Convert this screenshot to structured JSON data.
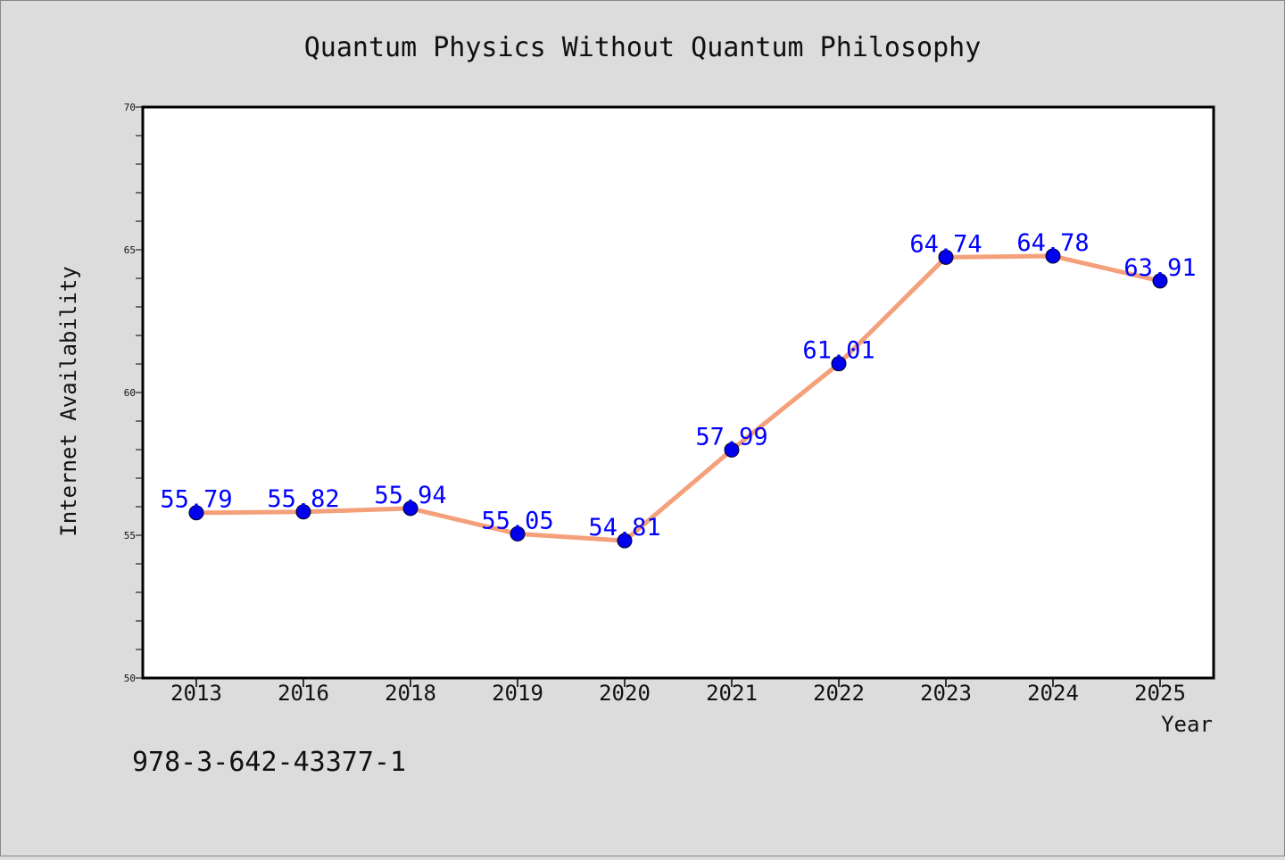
{
  "chart_data": {
    "type": "line",
    "title": "Quantum Physics Without Quantum Philosophy",
    "xlabel": "Year",
    "ylabel": "Internet Availability",
    "categories": [
      "2013",
      "2016",
      "2018",
      "2019",
      "2020",
      "2021",
      "2022",
      "2023",
      "2024",
      "2025"
    ],
    "series": [
      {
        "values": [
          55.79,
          55.82,
          55.94,
          55.05,
          54.81,
          57.99,
          61.01,
          64.74,
          64.78,
          63.91
        ],
        "line_color": "#f4a07a",
        "marker_color": "#0000ee"
      }
    ],
    "data_labels": [
      "55.79",
      "55.82",
      "55.94",
      "55.05",
      "54.81",
      "57.99",
      "61.01",
      "64.74",
      "64.78",
      "63.91"
    ],
    "ylim": [
      50,
      70
    ],
    "yticks": [
      "50",
      "55",
      "60",
      "65",
      "70"
    ],
    "grid": false,
    "label_color": "#0000ff"
  },
  "footer": {
    "isbn": "978-3-642-43377-1"
  },
  "colors": {
    "background": "#dcdcdc",
    "plot_background": "#ffffff"
  }
}
